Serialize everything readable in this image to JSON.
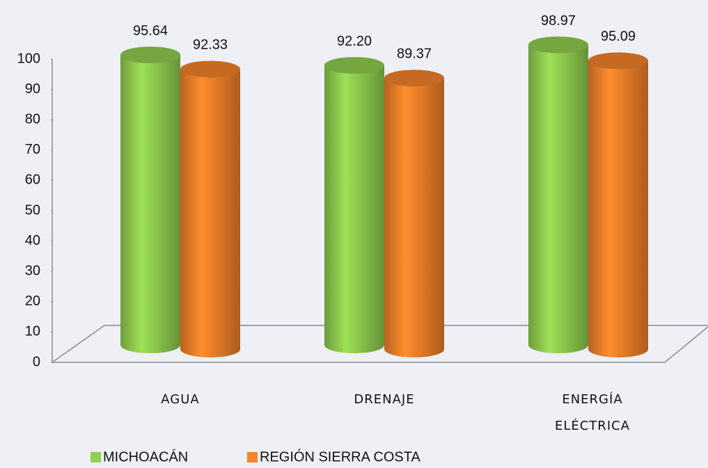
{
  "chart_data": {
    "type": "bar3d",
    "categories": [
      "AGUA",
      "DRENAJE",
      "ENERGÍA ELÉCTRICA"
    ],
    "series": [
      {
        "name": "MICHOACÁN",
        "color": "#92d050",
        "values": [
          95.64,
          92.2,
          98.97
        ],
        "value_labels": [
          "95.64",
          "92.20",
          "98.97"
        ]
      },
      {
        "name": "REGIÓN SIERRA COSTA",
        "color": "#f7832a",
        "values": [
          92.33,
          89.37,
          95.09
        ],
        "value_labels": [
          "92.33",
          "89.37",
          "95.09"
        ]
      }
    ],
    "ylim": [
      0,
      100
    ],
    "yticks": [
      0,
      10,
      20,
      30,
      40,
      50,
      60,
      70,
      80,
      90,
      100
    ],
    "grid": false
  }
}
